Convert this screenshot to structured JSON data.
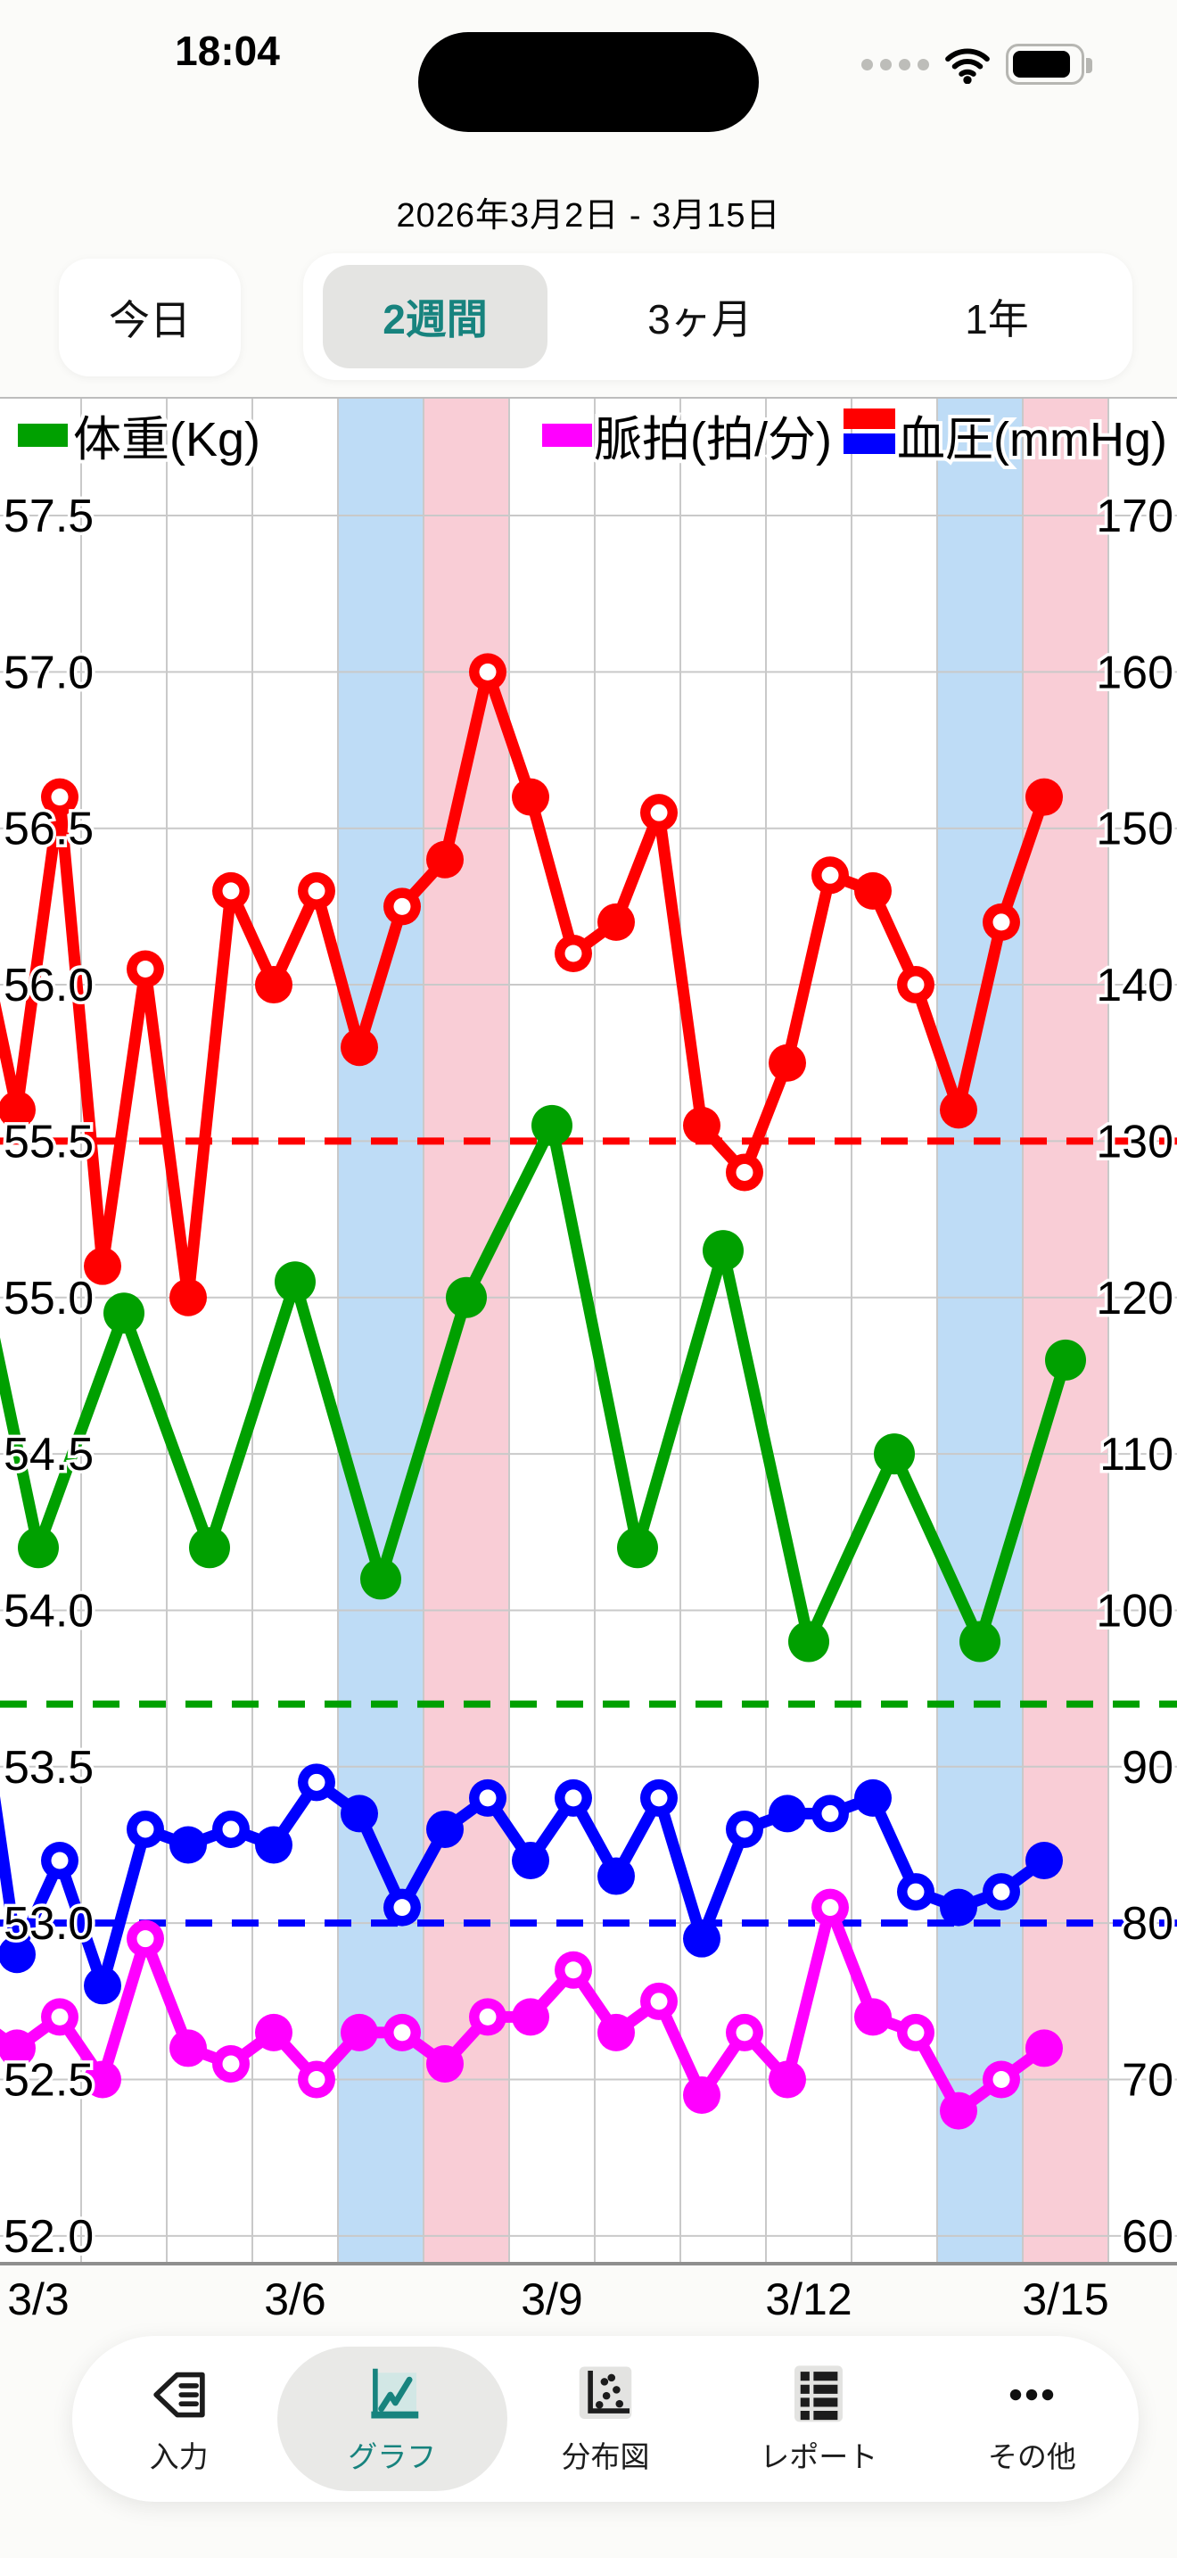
{
  "status_bar": {
    "time": "18:04"
  },
  "header": {
    "title": "2026年3月2日 - 3月15日"
  },
  "range_tabs": {
    "today_label": "今日",
    "options": [
      "2週間",
      "3ヶ月",
      "1年"
    ],
    "selected": "2週間"
  },
  "bottom_nav": {
    "items": [
      {
        "label": "入力",
        "icon": "pencil-input-icon",
        "active": false
      },
      {
        "label": "グラフ",
        "icon": "line-chart-icon",
        "active": true
      },
      {
        "label": "分布図",
        "icon": "scatter-plot-icon",
        "active": false
      },
      {
        "label": "レポート",
        "icon": "report-list-icon",
        "active": false
      },
      {
        "label": "その他",
        "icon": "ellipsis-icon",
        "active": false
      }
    ]
  },
  "chart_data": {
    "type": "line",
    "title": "",
    "x_axis": {
      "tick_labels": [
        "3/3",
        "3/6",
        "3/9",
        "3/12",
        "3/15"
      ],
      "tick_days": [
        3,
        6,
        9,
        12,
        15
      ],
      "range_days": [
        2,
        15
      ],
      "year_month": "2026-03"
    },
    "left_axis": {
      "name": "体重(Kg)",
      "ticks": [
        57.5,
        57.0,
        56.5,
        56.0,
        55.5,
        55.0,
        54.5,
        54.0,
        53.5,
        53.0,
        52.5,
        52.0
      ],
      "ylim": [
        52.0,
        57.5
      ]
    },
    "right_axis": {
      "name": "血圧(mmHg) / 脈拍(拍/分)",
      "ticks": [
        170,
        160,
        150,
        140,
        130,
        120,
        110,
        100,
        90,
        80,
        70,
        60
      ],
      "ylim": [
        60,
        170
      ]
    },
    "weekend_bands": {
      "saturdays": [
        7,
        14
      ],
      "sundays": [
        8,
        15
      ],
      "saturday_color": "#bedcf6",
      "sunday_color": "#f9cdd6"
    },
    "grid": {
      "color": "#c9c9c9",
      "axis_color": "#8f8f8f"
    },
    "target_lines": [
      {
        "name": "systolic-target",
        "value": 130,
        "axis": "right",
        "color": "#ff0000"
      },
      {
        "name": "weight-target",
        "value": 53.7,
        "axis": "left",
        "color": "#00a000"
      },
      {
        "name": "diastolic-target",
        "value": 80,
        "axis": "right",
        "color": "#0000ff"
      }
    ],
    "marker_semantics": {
      "filled": "morning / daily",
      "open": "evening"
    },
    "legend": [
      {
        "label": "体重(Kg)",
        "swatches": [
          "#00a000"
        ]
      },
      {
        "label": "脈拍(拍/分)",
        "swatches": [
          "#ff00ff"
        ]
      },
      {
        "label": "血圧(mmHg)",
        "swatches": [
          "#ff0000",
          "#0000ff"
        ]
      }
    ],
    "series": [
      {
        "name": "systolic",
        "legend": "血圧(mmHg)",
        "color": "#ff0000",
        "axis": "right",
        "points": [
          [
            2,
            "evening",
            145
          ],
          [
            3,
            "morning",
            132
          ],
          [
            3,
            "evening",
            152
          ],
          [
            4,
            "morning",
            122
          ],
          [
            4,
            "evening",
            141
          ],
          [
            5,
            "morning",
            120
          ],
          [
            5,
            "evening",
            146
          ],
          [
            6,
            "morning",
            140
          ],
          [
            6,
            "evening",
            146
          ],
          [
            7,
            "morning",
            136
          ],
          [
            7,
            "evening",
            145
          ],
          [
            8,
            "morning",
            148
          ],
          [
            8,
            "evening",
            160
          ],
          [
            9,
            "morning",
            152
          ],
          [
            9,
            "evening",
            142
          ],
          [
            10,
            "morning",
            144
          ],
          [
            10,
            "evening",
            151
          ],
          [
            11,
            "morning",
            131
          ],
          [
            11,
            "evening",
            128
          ],
          [
            12,
            "morning",
            135
          ],
          [
            12,
            "evening",
            147
          ],
          [
            13,
            "morning",
            146
          ],
          [
            13,
            "evening",
            140
          ],
          [
            14,
            "morning",
            132
          ],
          [
            14,
            "evening",
            144
          ],
          [
            15,
            "morning",
            152
          ]
        ]
      },
      {
        "name": "weight",
        "legend": "体重(Kg)",
        "color": "#00a000",
        "axis": "left",
        "points": [
          [
            2,
            "day",
            55.5
          ],
          [
            3,
            "day",
            54.2
          ],
          [
            4,
            "day",
            54.95
          ],
          [
            5,
            "day",
            54.2
          ],
          [
            6,
            "day",
            55.05
          ],
          [
            7,
            "day",
            54.1
          ],
          [
            8,
            "day",
            55.0
          ],
          [
            9,
            "day",
            55.55
          ],
          [
            10,
            "day",
            54.2
          ],
          [
            11,
            "day",
            55.15
          ],
          [
            12,
            "day",
            53.9
          ],
          [
            13,
            "day",
            54.5
          ],
          [
            14,
            "day",
            53.9
          ],
          [
            15,
            "day",
            54.8
          ]
        ]
      },
      {
        "name": "diastolic",
        "legend": "血圧(mmHg)",
        "color": "#0000ff",
        "axis": "right",
        "points": [
          [
            2,
            "evening",
            97
          ],
          [
            3,
            "morning",
            78
          ],
          [
            3,
            "evening",
            84
          ],
          [
            4,
            "morning",
            76
          ],
          [
            4,
            "evening",
            86
          ],
          [
            5,
            "morning",
            85
          ],
          [
            5,
            "evening",
            86
          ],
          [
            6,
            "morning",
            85
          ],
          [
            6,
            "evening",
            89
          ],
          [
            7,
            "morning",
            87
          ],
          [
            7,
            "evening",
            81
          ],
          [
            8,
            "morning",
            86
          ],
          [
            8,
            "evening",
            88
          ],
          [
            9,
            "morning",
            84
          ],
          [
            9,
            "evening",
            88
          ],
          [
            10,
            "morning",
            83
          ],
          [
            10,
            "evening",
            88
          ],
          [
            11,
            "morning",
            79
          ],
          [
            11,
            "evening",
            86
          ],
          [
            12,
            "morning",
            87
          ],
          [
            12,
            "evening",
            87
          ],
          [
            13,
            "morning",
            88
          ],
          [
            13,
            "evening",
            82
          ],
          [
            14,
            "morning",
            81
          ],
          [
            14,
            "evening",
            82
          ],
          [
            15,
            "morning",
            84
          ]
        ]
      },
      {
        "name": "pulse",
        "legend": "脈拍(拍/分)",
        "color": "#ff00ff",
        "axis": "right",
        "points": [
          [
            2,
            "evening",
            74
          ],
          [
            3,
            "morning",
            72
          ],
          [
            3,
            "evening",
            74
          ],
          [
            4,
            "morning",
            70
          ],
          [
            4,
            "evening",
            79
          ],
          [
            5,
            "morning",
            72
          ],
          [
            5,
            "evening",
            71
          ],
          [
            6,
            "morning",
            73
          ],
          [
            6,
            "evening",
            70
          ],
          [
            7,
            "morning",
            73
          ],
          [
            7,
            "evening",
            73
          ],
          [
            8,
            "morning",
            71
          ],
          [
            8,
            "evening",
            74
          ],
          [
            9,
            "morning",
            74
          ],
          [
            9,
            "evening",
            77
          ],
          [
            10,
            "morning",
            73
          ],
          [
            10,
            "evening",
            75
          ],
          [
            11,
            "morning",
            69
          ],
          [
            11,
            "evening",
            73
          ],
          [
            12,
            "morning",
            70
          ],
          [
            12,
            "evening",
            81
          ],
          [
            13,
            "morning",
            74
          ],
          [
            13,
            "evening",
            73
          ],
          [
            14,
            "morning",
            68
          ],
          [
            14,
            "evening",
            70
          ],
          [
            15,
            "morning",
            72
          ]
        ]
      }
    ]
  }
}
